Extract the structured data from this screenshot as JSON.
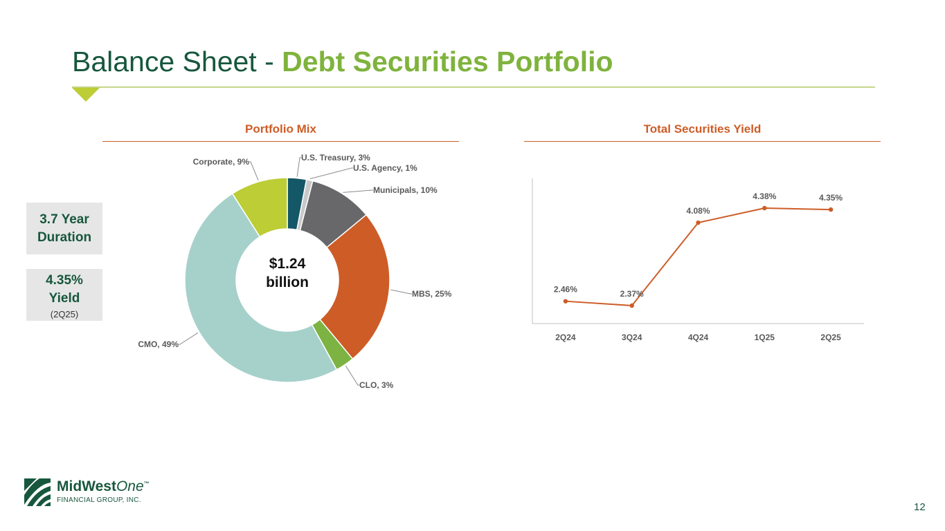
{
  "title": {
    "main": "Balance Sheet - ",
    "highlight": "Debt Securities Portfolio"
  },
  "sections": {
    "left_title": "Portfolio Mix",
    "right_title": "Total Securities Yield"
  },
  "stats": {
    "duration_value": "3.7 Year",
    "duration_label": "Duration",
    "yield_value": "4.35%",
    "yield_label": "Yield",
    "yield_period": "(2Q25)"
  },
  "chart_data": [
    {
      "type": "pie",
      "title": "Portfolio Mix",
      "center_text": [
        "$1.24",
        "billion"
      ],
      "categories": [
        "U.S. Treasury",
        "U.S. Agency",
        "Municipals",
        "MBS",
        "CLO",
        "CMO",
        "Corporate"
      ],
      "values": [
        3,
        1,
        10,
        25,
        3,
        49,
        9
      ],
      "labels": [
        "U.S. Treasury, 3%",
        "U.S. Agency, 1%",
        "Municipals, 10%",
        "MBS, 25%",
        "CLO, 3%",
        "CMO, 49%",
        "Corporate, 9%"
      ],
      "colors": [
        "#145766",
        "#c9c9c9",
        "#68686b",
        "#cd5c27",
        "#7cb342",
        "#a6d1ca",
        "#bccd35"
      ]
    },
    {
      "type": "line",
      "title": "Total Securities Yield",
      "categories": [
        "2Q24",
        "3Q24",
        "4Q24",
        "1Q25",
        "2Q25"
      ],
      "values": [
        2.46,
        2.37,
        4.08,
        4.38,
        4.35
      ],
      "labels": [
        "2.46%",
        "2.37%",
        "4.08%",
        "4.38%",
        "4.35%"
      ],
      "color": "#cd5c27",
      "ylim": [
        0,
        5
      ]
    }
  ],
  "logo": {
    "name_a": "MidWest",
    "name_b": "One",
    "tm": "™",
    "sub": "FINANCIAL GROUP, INC."
  },
  "page_number": "12"
}
